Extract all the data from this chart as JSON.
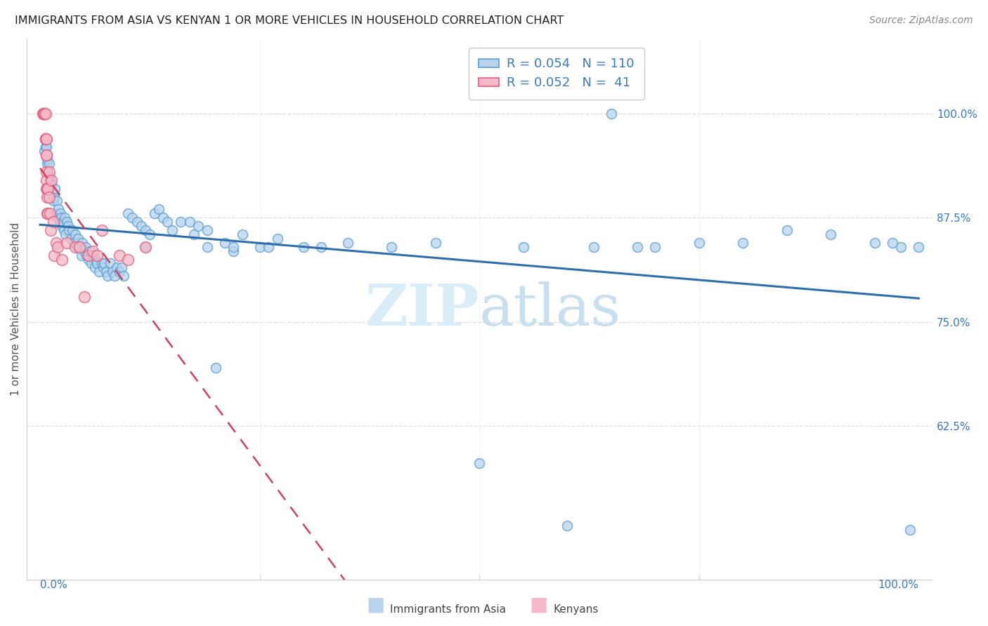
{
  "title": "IMMIGRANTS FROM ASIA VS KENYAN 1 OR MORE VEHICLES IN HOUSEHOLD CORRELATION CHART",
  "source": "Source: ZipAtlas.com",
  "ylabel": "1 or more Vehicles in Household",
  "ytick_labels": [
    "100.0%",
    "87.5%",
    "75.0%",
    "62.5%"
  ],
  "ytick_values": [
    1.0,
    0.875,
    0.75,
    0.625
  ],
  "legend_label1": "Immigrants from Asia",
  "legend_label2": "Kenyans",
  "R1": "0.054",
  "N1": "110",
  "R2": "0.052",
  "N2": " 41",
  "color_blue_face": "#b8d4ed",
  "color_blue_edge": "#5a9fd4",
  "color_blue_line": "#2e6fab",
  "color_pink_face": "#f5b8c8",
  "color_pink_edge": "#e06080",
  "color_pink_line": "#d04060",
  "watermark_color": "#d8edf8",
  "title_color": "#202020",
  "axis_color": "#3a7abf",
  "blue_x": [
    0.005,
    0.006,
    0.007,
    0.008,
    0.008,
    0.009,
    0.01,
    0.01,
    0.011,
    0.012,
    0.013,
    0.014,
    0.015,
    0.015,
    0.016,
    0.017,
    0.018,
    0.019,
    0.02,
    0.021,
    0.022,
    0.023,
    0.024,
    0.025,
    0.026,
    0.027,
    0.028,
    0.029,
    0.03,
    0.032,
    0.033,
    0.035,
    0.037,
    0.038,
    0.04,
    0.042,
    0.043,
    0.045,
    0.047,
    0.048,
    0.05,
    0.052,
    0.053,
    0.055,
    0.057,
    0.058,
    0.06,
    0.062,
    0.063,
    0.065,
    0.067,
    0.07,
    0.072,
    0.073,
    0.075,
    0.077,
    0.08,
    0.082,
    0.085,
    0.087,
    0.09,
    0.093,
    0.095,
    0.1,
    0.105,
    0.11,
    0.115,
    0.12,
    0.125,
    0.13,
    0.135,
    0.14,
    0.145,
    0.15,
    0.16,
    0.17,
    0.175,
    0.18,
    0.19,
    0.2,
    0.21,
    0.22,
    0.23,
    0.25,
    0.27,
    0.3,
    0.32,
    0.35,
    0.4,
    0.45,
    0.5,
    0.55,
    0.6,
    0.65,
    0.7,
    0.75,
    0.8,
    0.85,
    0.9,
    0.95,
    0.97,
    0.98,
    0.99,
    1.0,
    0.63,
    0.68,
    0.12,
    0.19,
    0.22,
    0.26
  ],
  "blue_y": [
    0.955,
    0.96,
    0.96,
    0.94,
    0.945,
    0.93,
    0.925,
    0.94,
    0.92,
    0.91,
    0.915,
    0.9,
    0.905,
    0.895,
    0.9,
    0.91,
    0.88,
    0.895,
    0.875,
    0.885,
    0.87,
    0.88,
    0.875,
    0.865,
    0.87,
    0.86,
    0.875,
    0.855,
    0.87,
    0.865,
    0.86,
    0.85,
    0.86,
    0.845,
    0.855,
    0.84,
    0.85,
    0.84,
    0.83,
    0.845,
    0.835,
    0.84,
    0.83,
    0.825,
    0.835,
    0.82,
    0.83,
    0.815,
    0.825,
    0.82,
    0.81,
    0.82,
    0.815,
    0.82,
    0.81,
    0.805,
    0.82,
    0.81,
    0.805,
    0.815,
    0.81,
    0.815,
    0.805,
    0.88,
    0.875,
    0.87,
    0.865,
    0.86,
    0.855,
    0.88,
    0.885,
    0.875,
    0.87,
    0.86,
    0.87,
    0.87,
    0.855,
    0.865,
    0.86,
    0.695,
    0.845,
    0.835,
    0.855,
    0.84,
    0.85,
    0.84,
    0.84,
    0.845,
    0.84,
    0.845,
    0.58,
    0.84,
    0.505,
    1.0,
    0.84,
    0.845,
    0.845,
    0.86,
    0.855,
    0.845,
    0.845,
    0.84,
    0.5,
    0.84,
    0.84,
    0.84,
    0.84,
    0.84,
    0.84,
    0.84
  ],
  "pink_x": [
    0.003,
    0.004,
    0.005,
    0.005,
    0.005,
    0.006,
    0.006,
    0.006,
    0.006,
    0.007,
    0.007,
    0.007,
    0.007,
    0.007,
    0.007,
    0.008,
    0.008,
    0.008,
    0.009,
    0.009,
    0.01,
    0.01,
    0.011,
    0.012,
    0.013,
    0.015,
    0.016,
    0.018,
    0.02,
    0.025,
    0.03,
    0.04,
    0.045,
    0.05,
    0.055,
    0.06,
    0.065,
    0.07,
    0.09,
    0.1,
    0.12
  ],
  "pink_y": [
    1.0,
    1.0,
    1.0,
    1.0,
    1.0,
    1.0,
    0.97,
    0.97,
    0.97,
    0.97,
    0.95,
    0.95,
    0.93,
    0.92,
    0.91,
    0.9,
    0.91,
    0.88,
    0.91,
    0.88,
    0.93,
    0.9,
    0.88,
    0.86,
    0.92,
    0.87,
    0.83,
    0.845,
    0.84,
    0.825,
    0.845,
    0.84,
    0.84,
    0.78,
    0.83,
    0.835,
    0.83,
    0.86,
    0.83,
    0.825,
    0.84
  ],
  "blue_marker_size": 100,
  "pink_marker_size": 130
}
